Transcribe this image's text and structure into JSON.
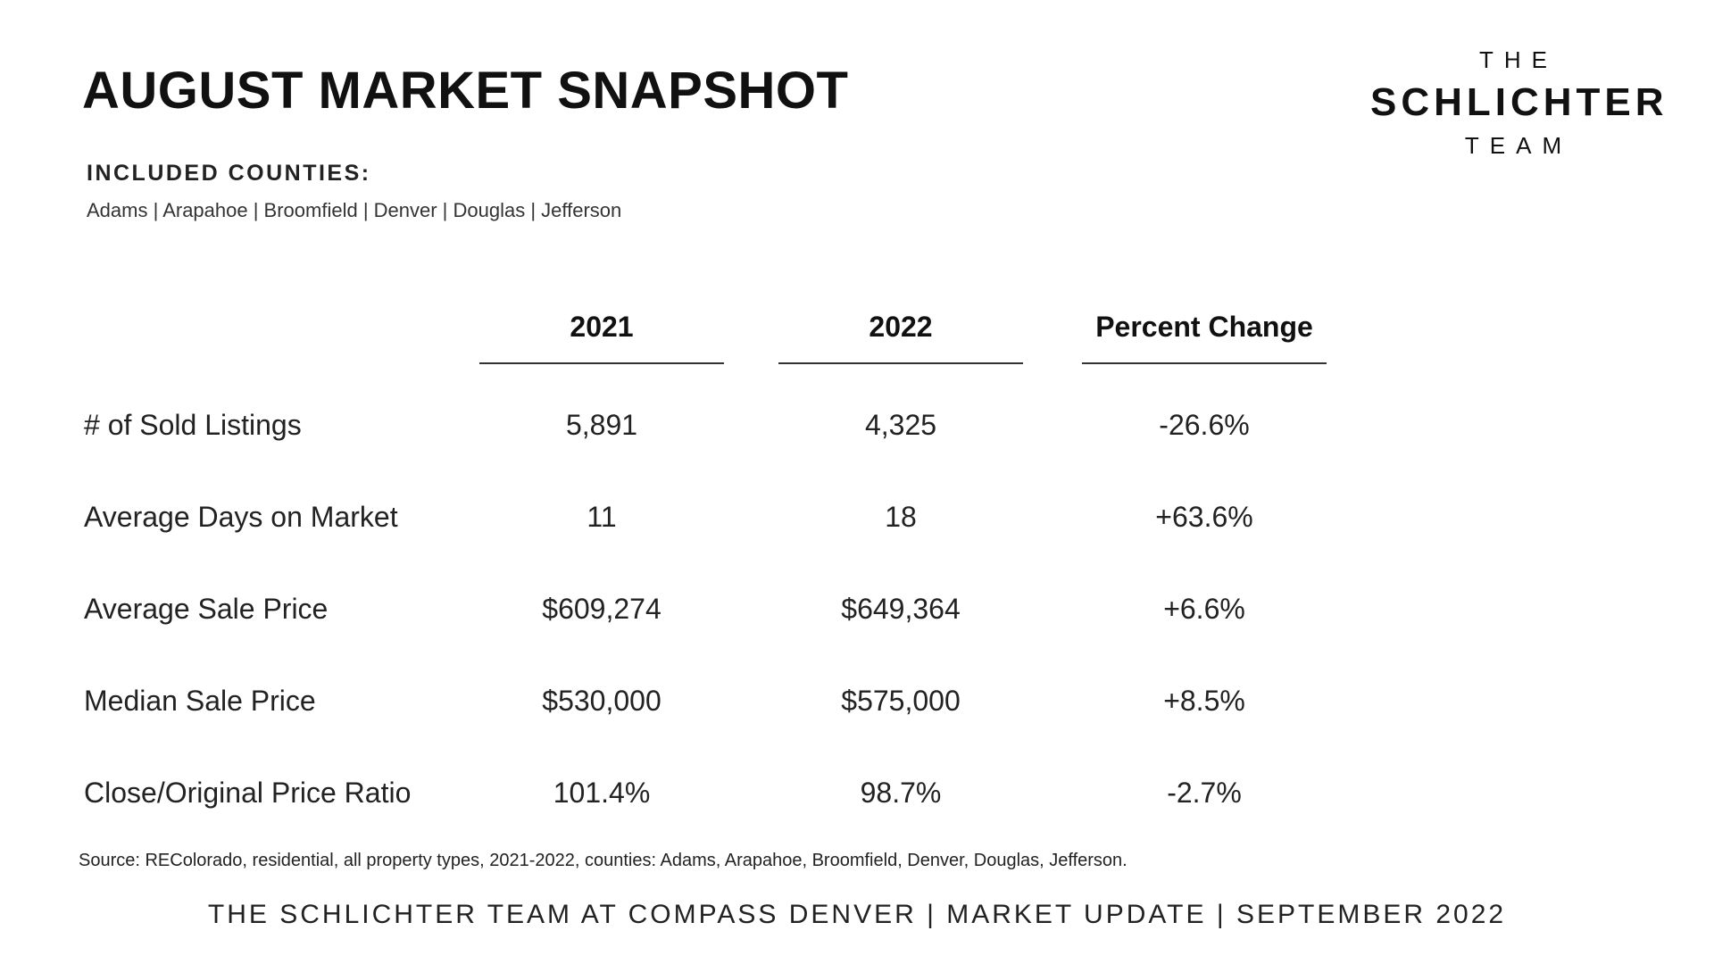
{
  "title": "AUGUST MARKET SNAPSHOT",
  "logo": {
    "top": "THE",
    "main": "SCHLICHTER",
    "bottom": "TEAM"
  },
  "counties": {
    "heading": "INCLUDED COUNTIES:",
    "list": "Adams | Arapahoe | Broomfield | Denver | Douglas | Jefferson"
  },
  "table": {
    "columns": [
      "2021",
      "2022",
      "Percent Change"
    ],
    "rows": [
      {
        "label": "# of Sold Listings",
        "values": [
          "5,891",
          "4,325",
          "-26.6%"
        ]
      },
      {
        "label": "Average Days on Market",
        "values": [
          "11",
          "18",
          "+63.6%"
        ]
      },
      {
        "label": "Average Sale Price",
        "values": [
          "$609,274",
          "$649,364",
          "+6.6%"
        ]
      },
      {
        "label": "Median Sale Price",
        "values": [
          "$530,000",
          "$575,000",
          "+8.5%"
        ]
      },
      {
        "label": "Close/Original Price Ratio",
        "values": [
          "101.4%",
          "98.7%",
          "-2.7%"
        ]
      }
    ]
  },
  "source": "Source: REColorado, residential, all property types, 2021-2022, counties: Adams, Arapahoe, Broomfield, Denver, Douglas, Jefferson.",
  "footer": "THE SCHLICHTER TEAM AT COMPASS DENVER | MARKET UPDATE | SEPTEMBER 2022"
}
